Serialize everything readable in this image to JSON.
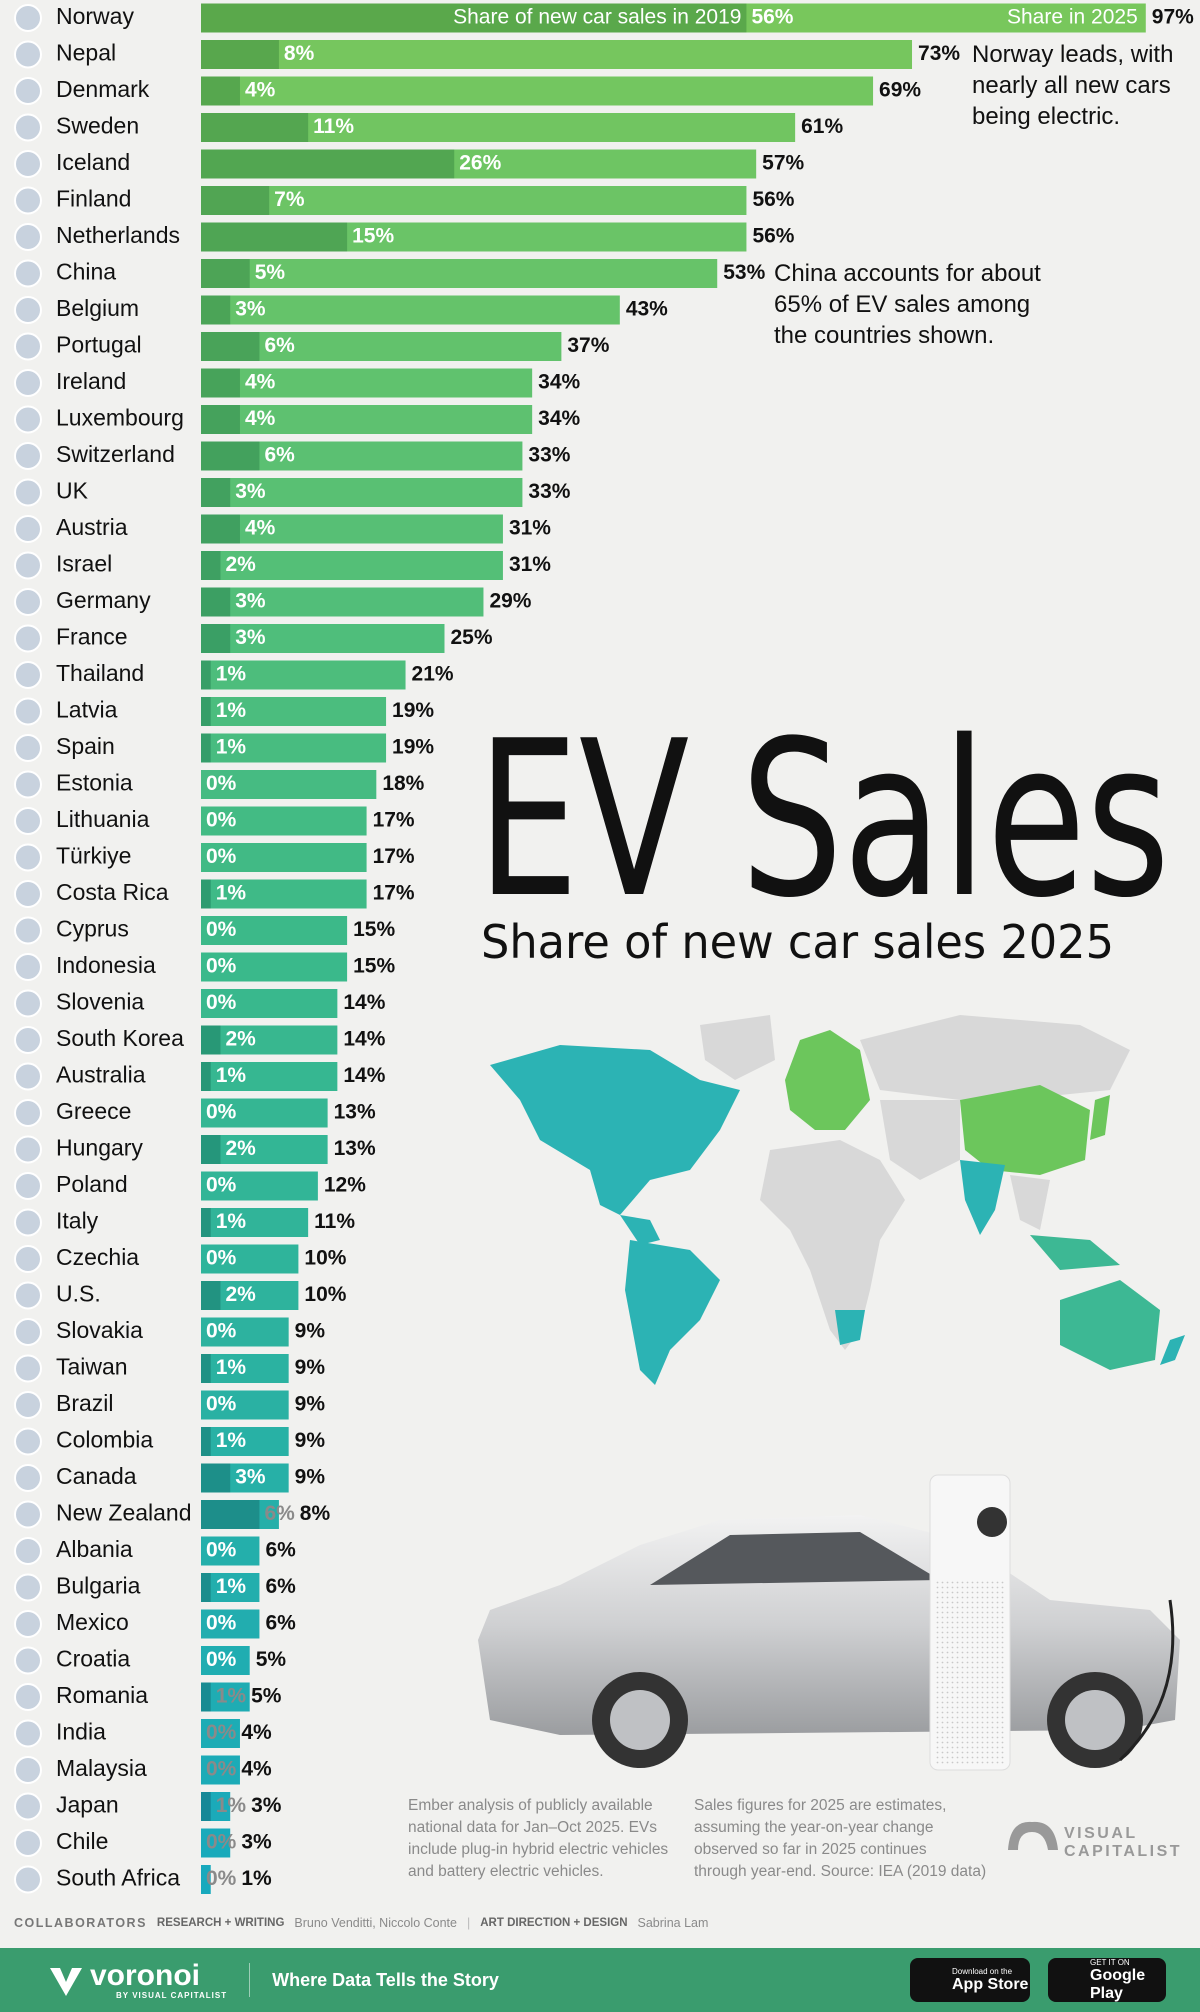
{
  "chart_data": {
    "type": "bar",
    "orientation": "horizontal",
    "title": "EV Sales",
    "subtitle": "Share of new car sales 2025",
    "categories": [
      "Norway",
      "Nepal",
      "Denmark",
      "Sweden",
      "Iceland",
      "Finland",
      "Netherlands",
      "China",
      "Belgium",
      "Portugal",
      "Ireland",
      "Luxembourg",
      "Switzerland",
      "UK",
      "Austria",
      "Israel",
      "Germany",
      "France",
      "Thailand",
      "Latvia",
      "Spain",
      "Estonia",
      "Lithuania",
      "Türkiye",
      "Costa Rica",
      "Cyprus",
      "Indonesia",
      "Slovenia",
      "South Korea",
      "Australia",
      "Greece",
      "Hungary",
      "Poland",
      "Italy",
      "Czechia",
      "U.S.",
      "Slovakia",
      "Taiwan",
      "Brazil",
      "Colombia",
      "Canada",
      "New Zealand",
      "Albania",
      "Bulgaria",
      "Mexico",
      "Croatia",
      "Romania",
      "India",
      "Malaysia",
      "Japan",
      "Chile",
      "South Africa"
    ],
    "series": [
      {
        "name": "Share of new car sales in 2019",
        "color_scale": [
          "#5aa84b",
          "#2a9a72",
          "#14879a"
        ],
        "values": [
          56,
          8,
          4,
          11,
          26,
          7,
          15,
          5,
          3,
          6,
          4,
          4,
          6,
          3,
          4,
          2,
          3,
          3,
          1,
          1,
          1,
          0,
          0,
          0,
          1,
          0,
          0,
          0,
          2,
          1,
          0,
          2,
          0,
          1,
          0,
          2,
          0,
          1,
          0,
          1,
          3,
          6,
          0,
          1,
          0,
          0,
          1,
          0,
          0,
          1,
          0,
          0
        ],
        "value_labels": [
          "56%",
          "8%",
          "4%",
          "11%",
          "26%",
          "7%",
          "15%",
          "5%",
          "3%",
          "6%",
          "4%",
          "4%",
          "6%",
          "3%",
          "4%",
          "2%",
          "3%",
          "3%",
          "1%",
          "1%",
          "1%",
          "0%",
          "0%",
          "0%",
          "1%",
          "0%",
          "0%",
          "0%",
          "2%",
          "1%",
          "0%",
          "2%",
          "0%",
          "1%",
          "0%",
          "2%",
          "0%",
          "1%",
          "0%",
          "1%",
          "3%",
          "6%",
          "0%",
          "1%",
          "0%",
          "0%",
          "1%",
          "0%",
          "0%",
          "1%",
          "0%",
          "0%"
        ]
      },
      {
        "name": "Share in 2025",
        "color_scale": [
          "#78c75c",
          "#3bb98a",
          "#18a9bd"
        ],
        "values": [
          97,
          73,
          69,
          61,
          57,
          56,
          56,
          53,
          43,
          37,
          34,
          34,
          33,
          33,
          31,
          31,
          29,
          25,
          21,
          19,
          19,
          18,
          17,
          17,
          17,
          15,
          15,
          14,
          14,
          14,
          13,
          13,
          12,
          11,
          10,
          10,
          9,
          9,
          9,
          9,
          9,
          8,
          6,
          6,
          6,
          5,
          5,
          4,
          4,
          3,
          3,
          1
        ],
        "value_labels": [
          "97%",
          "73%",
          "69%",
          "61%",
          "57%",
          "56%",
          "56%",
          "53%",
          "43%",
          "37%",
          "34%",
          "34%",
          "33%",
          "33%",
          "31%",
          "31%",
          "29%",
          "25%",
          "21%",
          "19%",
          "19%",
          "18%",
          "17%",
          "17%",
          "17%",
          "15%",
          "15%",
          "14%",
          "14%",
          "14%",
          "13%",
          "13%",
          "12%",
          "11%",
          "10%",
          "10%",
          "9%",
          "9%",
          "9%",
          "9%",
          "9%",
          "8%",
          "6%",
          "6%",
          "6%",
          "5%",
          "5%",
          "4%",
          "4%",
          "3%",
          "3%",
          "1%"
        ]
      }
    ],
    "annotations": [
      {
        "lines": [
          "Norway leads, with",
          "nearly all new cars",
          "being electric."
        ]
      },
      {
        "lines": [
          "China accounts for about",
          "65% of EV sales among",
          "the countries shown."
        ]
      }
    ],
    "notes": [
      [
        "Ember analysis of publicly available",
        "national data for Jan–Oct 2025. EVs",
        "include plug-in hybrid electric vehicles",
        "and battery electric vehicles."
      ],
      [
        "Sales figures for 2025 are estimates,",
        "assuming the year-on-year change",
        "observed so far in 2025 continues",
        "through year-end. Source: IEA (2019 data)"
      ]
    ]
  },
  "brand": [
    "VISUAL",
    "CAPITALIST"
  ],
  "credits": {
    "label": "COLLABORATORS",
    "roles": [
      {
        "role": "RESEARCH + WRITING",
        "names": "Bruno Venditti, Niccolo Conte"
      },
      {
        "role": "ART DIRECTION + DESIGN",
        "names": "Sabrina Lam"
      }
    ]
  },
  "footer": {
    "logo": "voronoi",
    "logo_sub": "BY VISUAL CAPITALIST",
    "tagline": "Where Data Tells the Story",
    "app_store": [
      "Download on the",
      "App Store"
    ],
    "google_play": [
      "GET IT ON",
      "Google Play"
    ]
  }
}
